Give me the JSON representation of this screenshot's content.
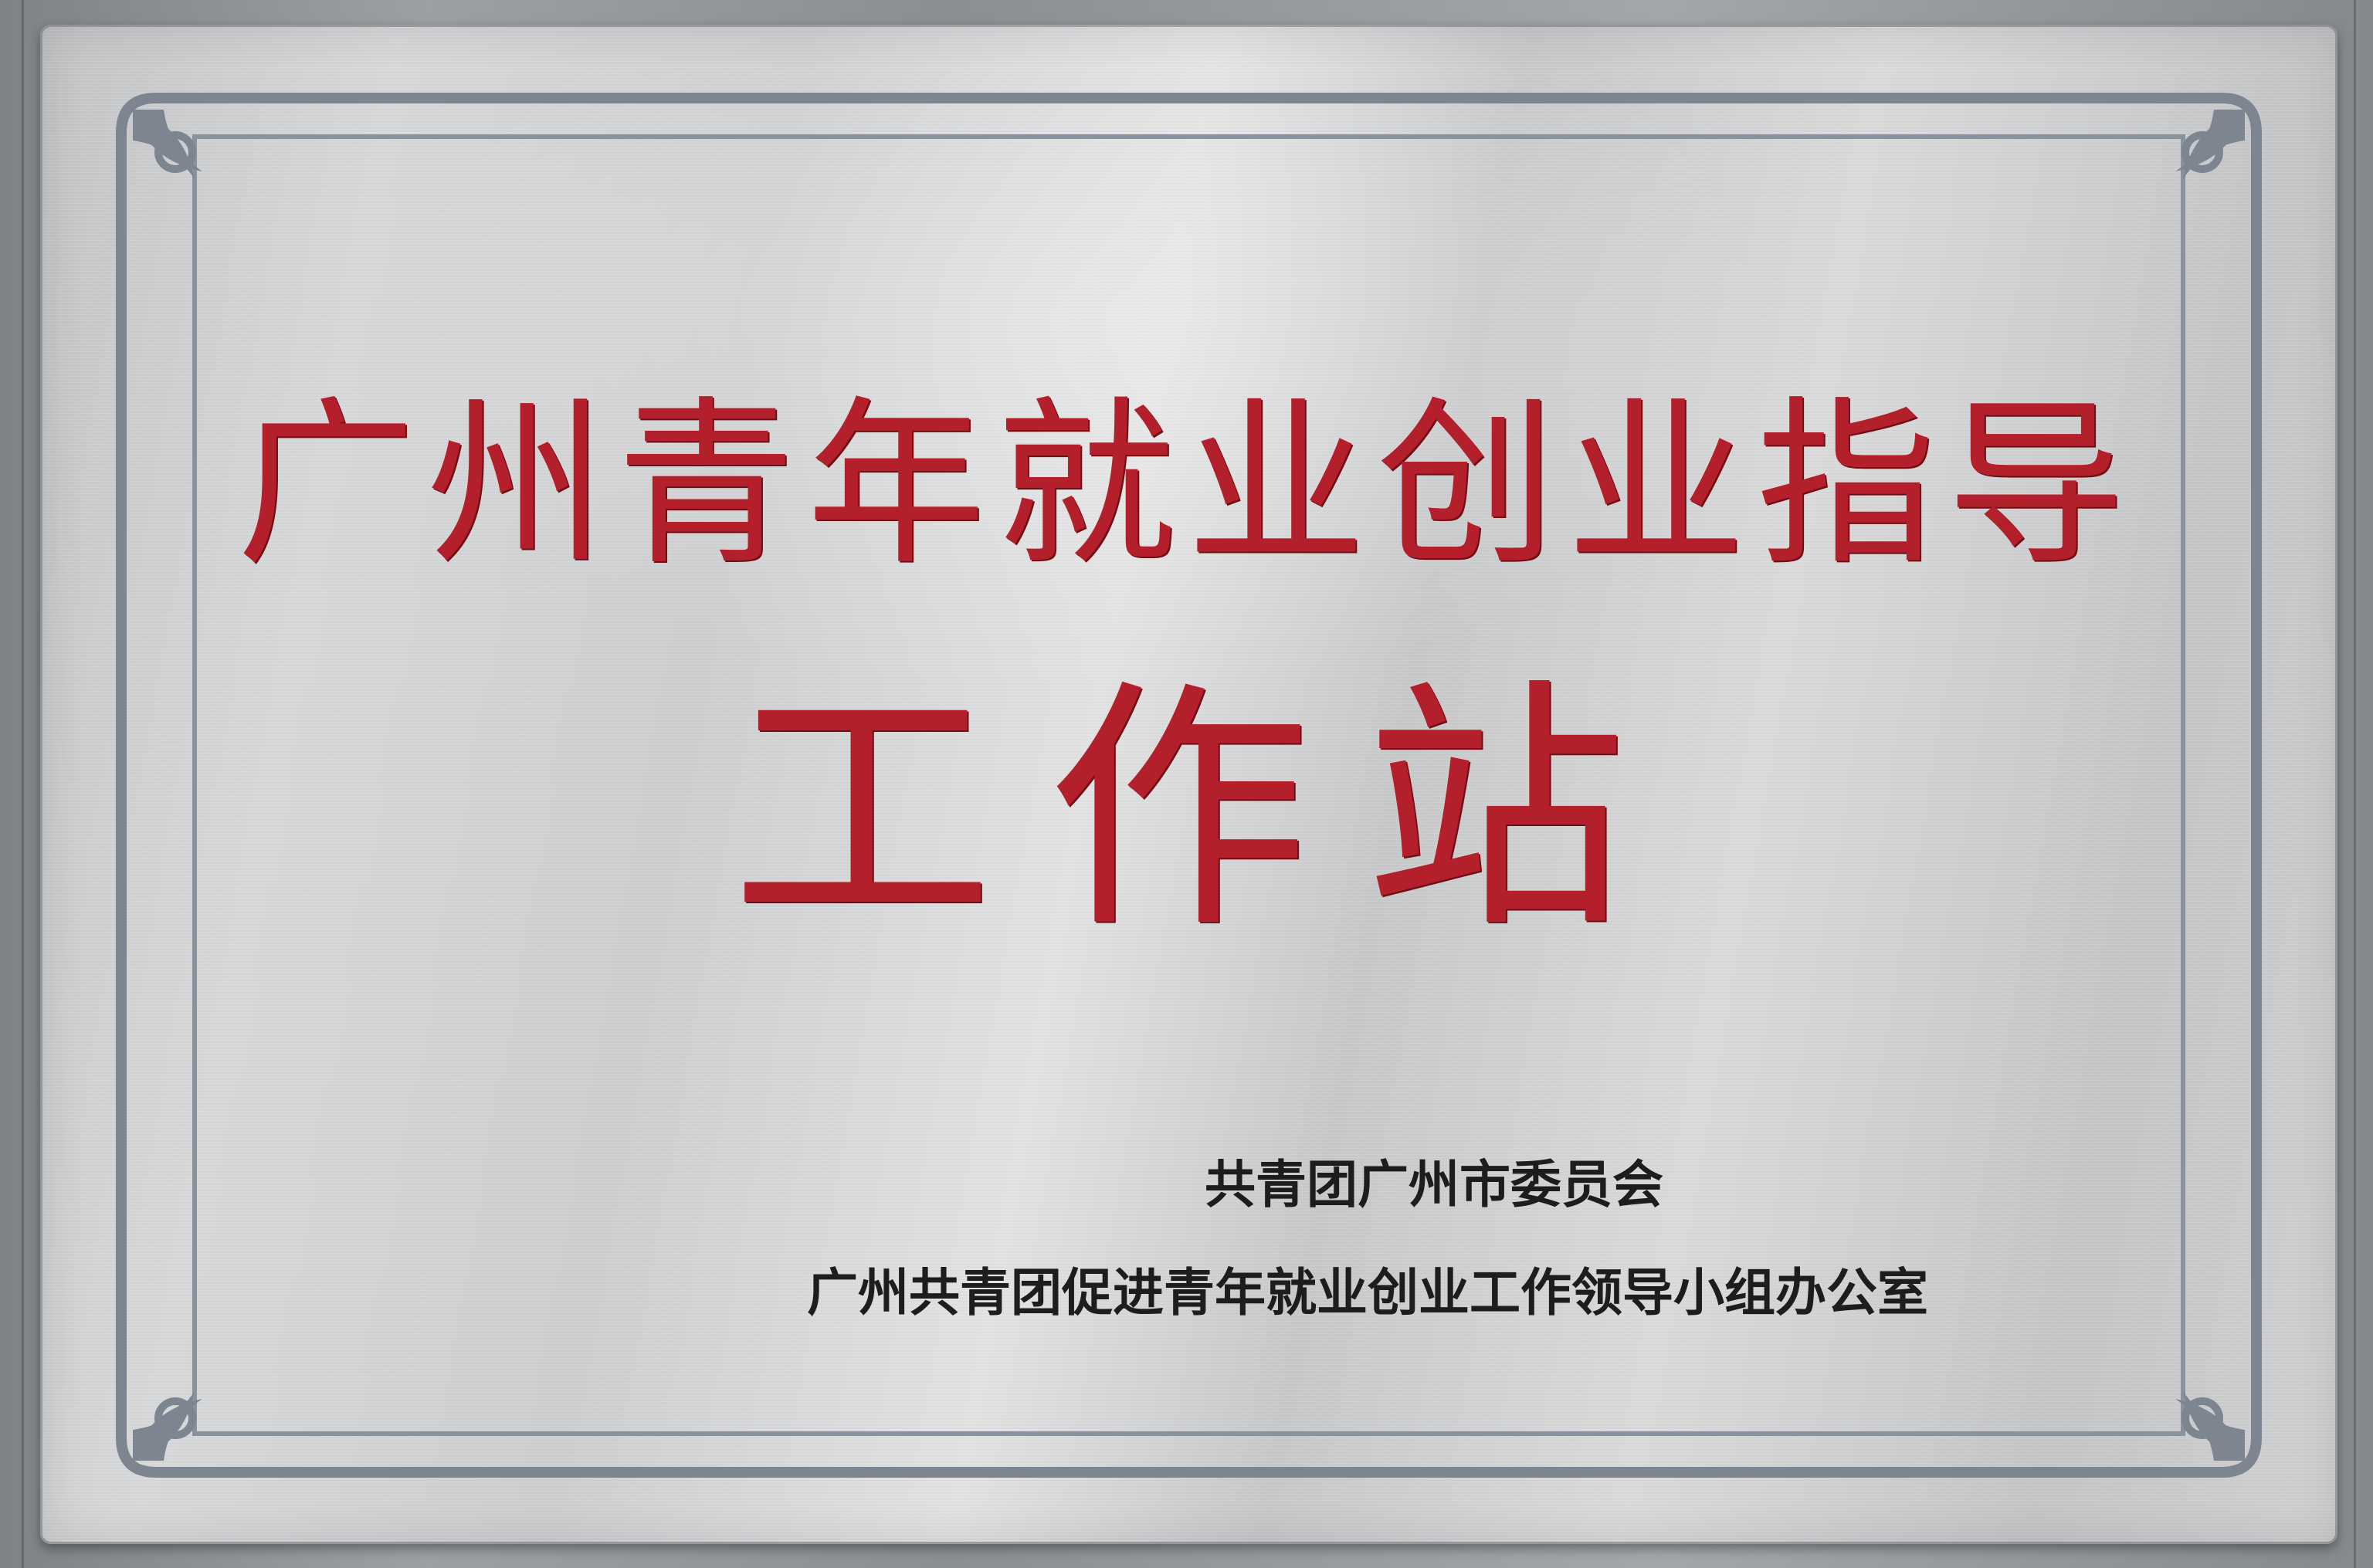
{
  "plaque": {
    "title_line_1": "广州青年就业创业指导",
    "title_line_2": "工作站",
    "issuer_1": "共青团广州市委员会",
    "issuer_2": "广州共青团促进青年就业创业工作领导小组办公室"
  },
  "colors": {
    "title_red": "#b3202b",
    "issuer_black": "#1d1d1f",
    "border_gray": "#7d8591",
    "metal_silver": "#d5d6d7"
  },
  "icons": {
    "corner_ornament": "scroll-flourish-icon"
  }
}
